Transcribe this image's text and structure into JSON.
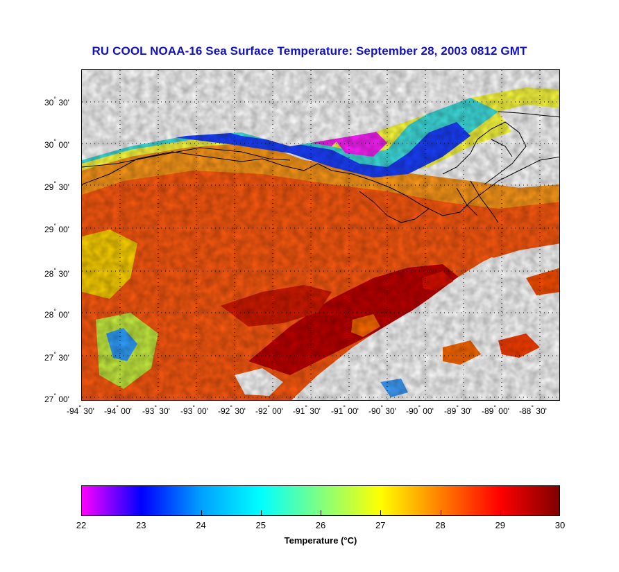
{
  "title": "RU COOL  NOAA-16  Sea Surface Temperature:  September 28, 2003 0812 GMT",
  "map": {
    "y_ticks": [
      {
        "deg": "30",
        "min": "30'"
      },
      {
        "deg": "30",
        "min": "00'"
      },
      {
        "deg": "29",
        "min": "30'"
      },
      {
        "deg": "29",
        "min": "00'"
      },
      {
        "deg": "28",
        "min": "30'"
      },
      {
        "deg": "28",
        "min": "00'"
      },
      {
        "deg": "27",
        "min": "30'"
      },
      {
        "deg": "27",
        "min": "00'"
      }
    ],
    "x_ticks": [
      {
        "deg": "-94",
        "min": "30'"
      },
      {
        "deg": "-94",
        "min": "00'"
      },
      {
        "deg": "-93",
        "min": "30'"
      },
      {
        "deg": "-93",
        "min": "00'"
      },
      {
        "deg": "-92",
        "min": "30'"
      },
      {
        "deg": "-92",
        "min": "00'"
      },
      {
        "deg": "-91",
        "min": "30'"
      },
      {
        "deg": "-91",
        "min": "00'"
      },
      {
        "deg": "-90",
        "min": "30'"
      },
      {
        "deg": "-90",
        "min": "00'"
      },
      {
        "deg": "-89",
        "min": "30'"
      },
      {
        "deg": "-89",
        "min": "00'"
      },
      {
        "deg": "-88",
        "min": "30'"
      }
    ],
    "grid": true,
    "colors": {
      "land_cloud": "#ffffff",
      "coastline": "#000000",
      "grid": "#000000"
    }
  },
  "colorbar": {
    "ticks": [
      "22",
      "23",
      "24",
      "25",
      "26",
      "27",
      "28",
      "29",
      "30"
    ],
    "min": 22,
    "max": 30,
    "label": "Temperature (°C)",
    "colors": [
      "#ff00ff",
      "#0000ff",
      "#00a0ff",
      "#00ffff",
      "#80ff80",
      "#ffff00",
      "#ff8000",
      "#ff0000",
      "#800000"
    ]
  }
}
